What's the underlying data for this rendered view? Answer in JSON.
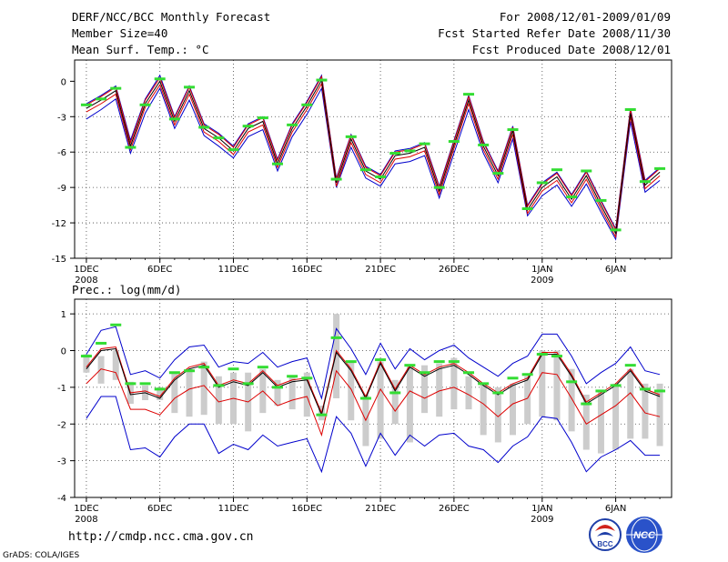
{
  "header": {
    "title": "DERF/NCC/BCC Monthly Forecast",
    "member": "Member Size=40",
    "variable": "Mean Surf. Temp.: °C",
    "period": "For 2008/12/01-2009/01/09",
    "start": "Fcst Started Refer Date 2008/11/30",
    "produced": "Fcst Produced Date 2008/12/01"
  },
  "footer": {
    "url": "http://cmdp.ncc.cma.gov.cn",
    "grads": "GrADS: COLA/IGES",
    "logo_left": "BCC",
    "logo_right": "NCC"
  },
  "colors": {
    "blue": "#0000cc",
    "red": "#dd0000",
    "green": "#33dd33",
    "gray": "#cccccc",
    "grid": "#444444"
  },
  "chart_data": [
    {
      "type": "line",
      "title": "Mean Surf. Temp.: °C",
      "xlabel": "",
      "ylabel": "",
      "ylim": [
        -15,
        1.8
      ],
      "yticks": [
        0,
        -3,
        -6,
        -9,
        -12,
        -15
      ],
      "ytick_labels": [
        "0",
        "-3",
        "-6",
        "-9",
        "-12",
        "-15"
      ],
      "xlim": [
        0.2,
        40.8
      ],
      "xticks": [
        1,
        6,
        11,
        16,
        21,
        26,
        32,
        37
      ],
      "xtick_labels": [
        "1DEC",
        "6DEC",
        "11DEC",
        "16DEC",
        "21DEC",
        "26DEC",
        "1JAN",
        "6JAN"
      ],
      "year_labels": [
        {
          "x": 1,
          "text": "2008"
        },
        {
          "x": 32,
          "text": "2009"
        }
      ],
      "day": [
        1,
        2,
        3,
        4,
        5,
        6,
        7,
        8,
        9,
        10,
        11,
        12,
        13,
        14,
        15,
        16,
        17,
        18,
        19,
        20,
        21,
        22,
        23,
        24,
        25,
        26,
        27,
        28,
        29,
        30,
        31,
        32,
        33,
        34,
        35,
        36,
        37,
        38,
        39,
        40
      ],
      "series": [
        {
          "name": "ensemble mean",
          "color": "black",
          "values": [
            -2.3,
            -1.6,
            -0.8,
            -5.5,
            -1.9,
            0.0,
            -3.4,
            -0.8,
            -4.0,
            -4.8,
            -5.9,
            -4.0,
            -3.4,
            -7.0,
            -4.0,
            -2.1,
            0.1,
            -8.6,
            -4.9,
            -7.6,
            -8.3,
            -6.3,
            -6.1,
            -5.6,
            -9.3,
            -5.4,
            -1.6,
            -5.5,
            -8.0,
            -4.2,
            -10.9,
            -9.0,
            -8.1,
            -10.0,
            -8.0,
            -10.5,
            -12.9,
            -2.7,
            -8.8,
            -7.7
          ]
        },
        {
          "name": "upper red",
          "color": "red",
          "values": [
            -2.0,
            -1.3,
            -0.5,
            -5.2,
            -1.6,
            0.3,
            -3.1,
            -0.5,
            -3.7,
            -4.5,
            -5.6,
            -3.7,
            -3.1,
            -6.7,
            -3.7,
            -1.8,
            0.4,
            -8.3,
            -4.6,
            -7.3,
            -8.0,
            -6.0,
            -5.8,
            -5.3,
            -9.0,
            -5.1,
            -1.3,
            -5.2,
            -7.7,
            -3.9,
            -10.6,
            -8.7,
            -7.8,
            -9.7,
            -7.7,
            -10.2,
            -12.6,
            -2.4,
            -8.5,
            -7.4
          ]
        },
        {
          "name": "lower red",
          "color": "red",
          "values": [
            -2.6,
            -1.9,
            -1.1,
            -5.8,
            -2.2,
            -0.3,
            -3.7,
            -1.1,
            -4.3,
            -5.1,
            -6.2,
            -4.3,
            -3.7,
            -7.3,
            -4.3,
            -2.4,
            -0.2,
            -8.9,
            -5.2,
            -7.9,
            -8.6,
            -6.6,
            -6.4,
            -5.9,
            -9.6,
            -5.7,
            -1.9,
            -5.8,
            -8.3,
            -4.5,
            -11.2,
            -9.3,
            -8.4,
            -10.3,
            -8.3,
            -10.8,
            -13.2,
            -3.0,
            -9.1,
            -8.0
          ]
        },
        {
          "name": "max blue",
          "color": "blue",
          "values": [
            -1.9,
            -1.2,
            -0.4,
            -5.0,
            -1.5,
            0.5,
            -3.0,
            -0.4,
            -3.6,
            -4.4,
            -5.5,
            -3.6,
            -3.0,
            -6.6,
            -3.6,
            -1.7,
            0.5,
            -8.2,
            -4.5,
            -7.2,
            -7.9,
            -5.9,
            -5.7,
            -5.2,
            -8.9,
            -5.0,
            -1.2,
            -5.1,
            -7.6,
            -3.8,
            -10.5,
            -8.6,
            -7.7,
            -9.6,
            -7.6,
            -10.1,
            -12.5,
            -2.3,
            -8.4,
            -7.3
          ]
        },
        {
          "name": "min blue",
          "color": "blue",
          "values": [
            -3.2,
            -2.4,
            -1.5,
            -6.1,
            -2.7,
            -0.6,
            -4.0,
            -1.6,
            -4.6,
            -5.5,
            -6.5,
            -4.7,
            -4.1,
            -7.6,
            -4.7,
            -2.8,
            -0.6,
            -9.0,
            -5.6,
            -8.2,
            -8.9,
            -7.0,
            -6.8,
            -6.3,
            -9.9,
            -6.1,
            -2.4,
            -6.1,
            -8.6,
            -4.9,
            -11.4,
            -9.7,
            -8.8,
            -10.6,
            -8.7,
            -11.1,
            -13.4,
            -3.4,
            -9.4,
            -8.4
          ]
        },
        {
          "name": "green marker",
          "color": "green",
          "values": [
            -2.0,
            -1.5,
            -0.6,
            -5.6,
            -2.0,
            0.2,
            -3.2,
            -0.5,
            -3.9,
            -4.8,
            -5.8,
            -3.8,
            -3.1,
            -7.0,
            -3.7,
            -2.0,
            0.1,
            -8.3,
            -4.7,
            -7.5,
            -8.1,
            -6.1,
            -5.9,
            -5.3,
            -9.0,
            -5.1,
            -1.1,
            -5.4,
            -7.8,
            -4.1,
            -10.8,
            -8.6,
            -7.5,
            -9.8,
            -7.6,
            -10.1,
            -12.6,
            -2.4,
            -8.5,
            -7.4
          ]
        }
      ]
    },
    {
      "type": "line",
      "title": "Prec.: log(mm/d)",
      "xlabel": "",
      "ylabel": "",
      "ylim": [
        -4,
        1.4
      ],
      "yticks": [
        1,
        0,
        -1,
        -2,
        -3,
        -4
      ],
      "ytick_labels": [
        "1",
        "0",
        "-1",
        "-2",
        "-3",
        "-4"
      ],
      "xlim": [
        0.2,
        40.8
      ],
      "xticks": [
        1,
        6,
        11,
        16,
        21,
        26,
        32,
        37
      ],
      "xtick_labels": [
        "1DEC",
        "6DEC",
        "11DEC",
        "16DEC",
        "21DEC",
        "26DEC",
        "1JAN",
        "6JAN"
      ],
      "year_labels": [
        {
          "x": 1,
          "text": "2008"
        },
        {
          "x": 32,
          "text": "2009"
        }
      ],
      "day": [
        1,
        2,
        3,
        4,
        5,
        6,
        7,
        8,
        9,
        10,
        11,
        12,
        13,
        14,
        15,
        16,
        17,
        18,
        19,
        20,
        21,
        22,
        23,
        24,
        25,
        26,
        27,
        28,
        29,
        30,
        31,
        32,
        33,
        34,
        35,
        36,
        37,
        38,
        39,
        40
      ],
      "series": [
        {
          "name": "ensemble mean",
          "color": "black",
          "values": [
            -0.5,
            0.0,
            0.05,
            -1.2,
            -1.15,
            -1.3,
            -0.8,
            -0.5,
            -0.4,
            -1.0,
            -0.85,
            -0.95,
            -0.6,
            -1.0,
            -0.85,
            -0.8,
            -1.75,
            -0.05,
            -0.55,
            -1.3,
            -0.35,
            -1.1,
            -0.45,
            -0.7,
            -0.5,
            -0.4,
            -0.65,
            -0.95,
            -1.2,
            -0.95,
            -0.8,
            -0.1,
            -0.1,
            -0.7,
            -1.45,
            -1.2,
            -0.95,
            -0.55,
            -1.1,
            -1.25
          ]
        },
        {
          "name": "upper red",
          "color": "red",
          "values": [
            -0.45,
            0.05,
            0.1,
            -1.15,
            -1.1,
            -1.25,
            -0.75,
            -0.45,
            -0.35,
            -0.95,
            -0.8,
            -0.9,
            -0.55,
            -0.95,
            -0.8,
            -0.75,
            -1.7,
            0.0,
            -0.5,
            -1.25,
            -0.3,
            -1.05,
            -0.4,
            -0.65,
            -0.45,
            -0.35,
            -0.6,
            -0.9,
            -1.15,
            -0.9,
            -0.75,
            -0.05,
            -0.05,
            -0.65,
            -1.4,
            -1.15,
            -0.9,
            -0.5,
            -1.05,
            -1.2
          ]
        },
        {
          "name": "lower red",
          "color": "red",
          "values": [
            -0.9,
            -0.5,
            -0.6,
            -1.6,
            -1.6,
            -1.75,
            -1.3,
            -1.05,
            -0.95,
            -1.4,
            -1.3,
            -1.4,
            -1.1,
            -1.5,
            -1.35,
            -1.25,
            -2.3,
            -0.55,
            -1.05,
            -1.9,
            -1.05,
            -1.65,
            -1.1,
            -1.3,
            -1.1,
            -1.0,
            -1.2,
            -1.45,
            -1.8,
            -1.45,
            -1.3,
            -0.6,
            -0.65,
            -1.3,
            -2.0,
            -1.75,
            -1.5,
            -1.15,
            -1.7,
            -1.8
          ]
        },
        {
          "name": "max blue",
          "color": "blue",
          "values": [
            -0.1,
            0.55,
            0.65,
            -0.65,
            -0.55,
            -0.75,
            -0.25,
            0.1,
            0.15,
            -0.45,
            -0.3,
            -0.35,
            -0.05,
            -0.45,
            -0.3,
            -0.2,
            -1.3,
            0.6,
            0.05,
            -0.65,
            0.2,
            -0.5,
            0.05,
            -0.25,
            0.0,
            0.15,
            -0.2,
            -0.45,
            -0.7,
            -0.35,
            -0.15,
            0.45,
            0.45,
            -0.15,
            -0.9,
            -0.6,
            -0.35,
            0.1,
            -0.55,
            -0.65
          ]
        },
        {
          "name": "min blue",
          "color": "blue",
          "values": [
            -1.85,
            -1.25,
            -1.25,
            -2.7,
            -2.65,
            -2.9,
            -2.35,
            -2.0,
            -2.0,
            -2.8,
            -2.55,
            -2.7,
            -2.3,
            -2.6,
            -2.5,
            -2.4,
            -3.3,
            -1.8,
            -2.25,
            -3.15,
            -2.25,
            -2.85,
            -2.3,
            -2.6,
            -2.3,
            -2.25,
            -2.6,
            -2.7,
            -3.05,
            -2.6,
            -2.35,
            -1.8,
            -1.85,
            -2.5,
            -3.3,
            -2.9,
            -2.7,
            -2.45,
            -2.85,
            -2.85
          ]
        },
        {
          "name": "green marker",
          "color": "green",
          "values": [
            -0.15,
            0.2,
            0.7,
            -0.9,
            -0.9,
            -1.05,
            -0.6,
            -0.55,
            -0.45,
            -0.95,
            -0.5,
            -0.9,
            -0.45,
            -1.0,
            -0.7,
            -0.75,
            -1.75,
            0.35,
            -0.3,
            -1.3,
            -0.25,
            -1.15,
            -0.4,
            -0.6,
            -0.3,
            -0.3,
            -0.6,
            -0.9,
            -1.15,
            -0.75,
            -0.65,
            -0.1,
            -0.15,
            -0.85,
            -1.45,
            -1.1,
            -0.95,
            -0.4,
            -1.05,
            -1.1
          ]
        },
        {
          "name": "spread bar top",
          "color": "gray",
          "values": [
            -0.1,
            -0.15,
            0.0,
            -0.85,
            -0.95,
            -1.0,
            -0.6,
            -0.5,
            -0.3,
            -0.7,
            -0.6,
            -0.6,
            -0.5,
            -0.8,
            -0.7,
            -0.6,
            -1.5,
            1.0,
            -0.3,
            -1.2,
            -0.3,
            -0.8,
            -0.4,
            -0.4,
            -0.35,
            -0.2,
            -0.7,
            -0.9,
            -1.0,
            -0.9,
            -0.7,
            0.0,
            0.0,
            -0.5,
            -1.2,
            -1.1,
            -0.9,
            -0.5,
            -0.9,
            -0.9
          ]
        },
        {
          "name": "spread bar bottom",
          "color": "gray",
          "values": [
            -0.6,
            -0.9,
            -0.8,
            -1.45,
            -1.35,
            -1.35,
            -1.7,
            -1.8,
            -1.75,
            -2.0,
            -2.0,
            -2.2,
            -1.7,
            -1.5,
            -1.6,
            -1.8,
            -1.9,
            -1.3,
            -1.9,
            -2.6,
            -2.4,
            -2.0,
            -2.5,
            -1.7,
            -1.8,
            -1.6,
            -1.6,
            -2.3,
            -2.5,
            -2.3,
            -2.0,
            -1.8,
            -1.9,
            -2.2,
            -2.7,
            -2.8,
            -2.7,
            -2.4,
            -2.4,
            -2.6
          ]
        }
      ]
    }
  ]
}
